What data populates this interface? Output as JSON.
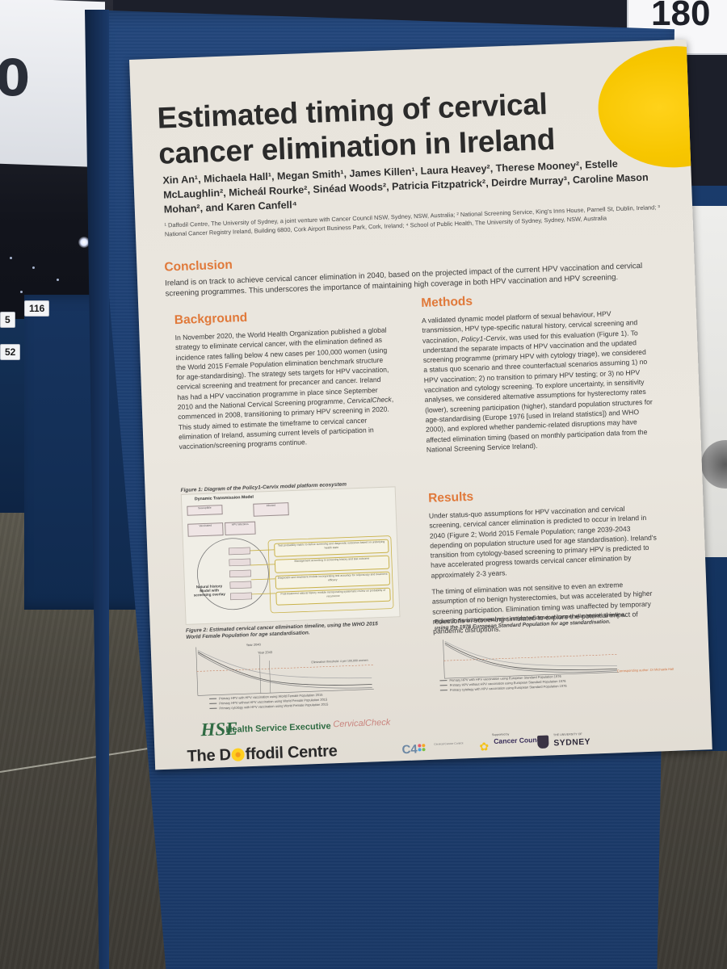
{
  "background": {
    "left_sign_text": "0",
    "tag_116": "116",
    "tag_5": "5",
    "tag_52": "52",
    "right_sign_text": "180"
  },
  "poster": {
    "title": "Estimated timing of cervical cancer elimination in Ireland",
    "authors": "Xin An¹, Michaela Hall¹, Megan Smith¹, James Killen¹, Laura Heavey², Therese Mooney², Estelle McLaughlin², Micheál Rourke², Sinéad Woods², Patricia Fitzpatrick², Deirdre Murray³, Caroline Mason Mohan², and Karen Canfell⁴",
    "affiliations": "¹ Daffodil Centre, The University of Sydney, a joint venture with Cancer Council NSW, Sydney, NSW, Australia; ² National Screening Service, King's Inns House, Parnell St, Dublin, Ireland; ³ National Cancer Registry Ireland, Building 6800, Cork Airport Business Park, Cork, Ireland; ⁴ School of Public Health, The University of Sydney, Sydney, NSW, Australia",
    "conclusion": {
      "heading": "Conclusion",
      "text": "Ireland is on track to achieve cervical cancer elimination in 2040, based on the projected impact of the current HPV vaccination and cervical screening programmes. This underscores the importance of maintaining high coverage in both HPV vaccination and HPV screening."
    },
    "background": {
      "heading": "Background",
      "text_1": "In November 2020, the World Health Organization published a global strategy to eliminate cervical cancer, with the elimination defined as incidence rates falling below 4 new cases per 100,000 women (using the World 2015 Female Population elimination benchmark structure for age-standardising). The strategy sets targets for HPV vaccination, cervical screening and treatment for precancer and cancer. Ireland has had a HPV vaccination programme in place since September 2010 and the National Cervical Screening programme, ",
      "text_italic": "CervicalCheck",
      "text_2": ", commenced in 2008, transitioning to primary HPV screening in 2020. This study aimed to estimate the timeframe to cervical cancer elimination of Ireland, assuming current levels of participation in vaccination/screening programs continue."
    },
    "methods": {
      "heading": "Methods",
      "text_1": "A validated dynamic model platform of sexual behaviour, HPV transmission, HPV type-specific natural history, cervical screening and vaccination, ",
      "text_italic": "Policy1-Cervix",
      "text_2": ", was used for this evaluation (Figure 1). To understand the separate impacts of HPV vaccination and the updated screening programme (primary HPV with cytology triage), we considered a status quo scenario and three counterfactual scenarios assuming 1) no HPV vaccination; 2) no transition to primary HPV testing; or 3) no HPV vaccination and cytology screening. To explore uncertainty, in sensitivity analyses, we considered alternative assumptions for hysterectomy rates (lower), screening participation (higher), standard population structures for age-standardising (Europe 1976 [used in Ireland statistics]) and WHO 2000), and explored whether pandemic-related disruptions may have affected elimination timing (based on monthly participation data from the National Screening Service Ireland)."
    },
    "results": {
      "heading": "Results",
      "text_1": "Under status-quo assumptions for HPV vaccination and cervical screening, cervical cancer elimination is predicted to occur in Ireland in 2040 (Figure 2; World 2015 Female Population; range 2039-2043 depending on population structure used for age standardisation). Ireland's transition from cytology-based screening to primary HPV is predicted to have accelerated progress towards cervical cancer elimination by approximately 2-3 years.",
      "text_2": "The timing of elimination was not sensitive to even an extreme assumption of no benign hysterectomies, but was accelerated by higher screening participation. Elimination timing was unaffected by temporary reductions in screening simulated to explore the potential impact of pandemic disruptions."
    },
    "figure1": {
      "caption": "Figure 1: Diagram of the Policy1-Cervix model platform ecosystem",
      "title": "Dynamic Transmission Model",
      "box_susceptible": "Susceptible",
      "box_infected": "Infected",
      "box_vaccinated": "Vaccinated",
      "box_hpv": "HPV infections",
      "label_natural": "Natural history Model with screening overlay",
      "callouts": [
        "Test probability matrix to define screening and diagnostic outcomes based on underlying health state",
        "Management according to screening history and test outcome",
        "Diagnostic and treatment module incorporating test accuracy for colposcopy and treatment efficacy",
        "Post-treatment natural history module incorporating systematic review on probability of recurrence"
      ]
    },
    "figure2": {
      "caption": "Figure 2: Estimated cervical cancer elimination timeline, using the WHO 2015 World Female Population for age standardisation.",
      "annotations": [
        "Year 2040",
        "Year 2043",
        "Elimination threshold: 4 per 100,000 women"
      ],
      "legend": [
        "Primary HPV with HPV vaccination using World Female Population 2015",
        "Primary HPV without HPV vaccination using World Female Population 2015",
        "Primary cytology with HPV vaccination using World Female Population 2015"
      ]
    },
    "figure3": {
      "caption": "Figure 3: Sensitivity analysis: estimated cervical cancer elimination timeline, using the 1976 European Standard Population for age standardisation.",
      "legend": [
        "Primary HPV with HPV vaccination using European Standard Population 1976",
        "Primary HPV without HPV vaccination using European Standard Population 1976",
        "Primary cytology with HPV vaccination using European Standard Population 1976"
      ]
    },
    "contact": "Corresponding author: Dr Michaela Hall",
    "logos": {
      "hse_mark": "HSE",
      "hse_text": "Health Service Executive",
      "cervicalcheck": "CervicalCheck",
      "daffodil_pre": "The D",
      "daffodil_post": "ffodil Centre",
      "c4": "C4",
      "c4_small": "Cervical Cancer Control",
      "cancer_council": "Cancer Council",
      "sydney": "SYDNEY",
      "sydney_small": "THE UNIVERSITY OF",
      "cc_small": "Supported by"
    }
  }
}
